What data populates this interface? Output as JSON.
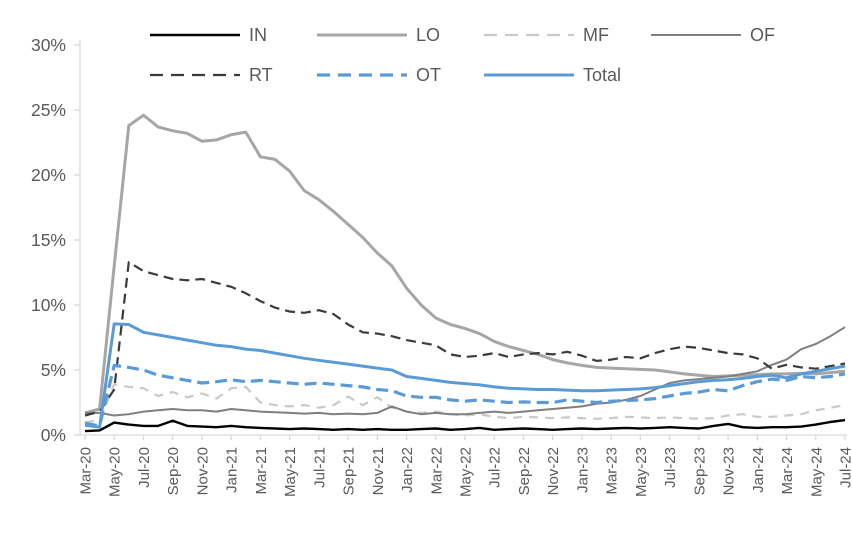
{
  "chart_data": {
    "type": "line",
    "title": "",
    "xlabel": "",
    "ylabel": "",
    "ylim": [
      0,
      30
    ],
    "grid": false,
    "legend_position": "top",
    "text_color": "#595959",
    "axis_color": "#d9d9d9",
    "y_ticks": [
      {
        "value": 0,
        "label": "0%"
      },
      {
        "value": 5,
        "label": "5%"
      },
      {
        "value": 10,
        "label": "10%"
      },
      {
        "value": 15,
        "label": "15%"
      },
      {
        "value": 20,
        "label": "20%"
      },
      {
        "value": 25,
        "label": "25%"
      },
      {
        "value": 30,
        "label": "30%"
      }
    ],
    "x_tick_labels": [
      "Mar-20",
      "May-20",
      "Jul-20",
      "Sep-20",
      "Nov-20",
      "Jan-21",
      "Mar-21",
      "May-21",
      "Jul-21",
      "Sep-21",
      "Nov-21",
      "Jan-22",
      "Mar-22",
      "May-22",
      "Jul-22",
      "Sep-22",
      "Nov-22",
      "Jan-23",
      "Mar-23",
      "May-23",
      "Jul-23",
      "Sep-23",
      "Nov-23",
      "Jan-24",
      "Mar-24",
      "May-24",
      "Jul-24"
    ],
    "x_categories": [
      "Mar-20",
      "Apr-20",
      "May-20",
      "Jun-20",
      "Jul-20",
      "Aug-20",
      "Sep-20",
      "Oct-20",
      "Nov-20",
      "Dec-20",
      "Jan-21",
      "Feb-21",
      "Mar-21",
      "Apr-21",
      "May-21",
      "Jun-21",
      "Jul-21",
      "Aug-21",
      "Sep-21",
      "Oct-21",
      "Nov-21",
      "Dec-21",
      "Jan-22",
      "Feb-22",
      "Mar-22",
      "Apr-22",
      "May-22",
      "Jun-22",
      "Jul-22",
      "Aug-22",
      "Sep-22",
      "Oct-22",
      "Nov-22",
      "Dec-22",
      "Jan-23",
      "Feb-23",
      "Mar-23",
      "Apr-23",
      "May-23",
      "Jun-23",
      "Jul-23",
      "Aug-23",
      "Sep-23",
      "Oct-23",
      "Nov-23",
      "Dec-23",
      "Jan-24",
      "Feb-24",
      "Mar-24",
      "Apr-24",
      "May-24",
      "Jun-24",
      "Jul-24"
    ],
    "series": [
      {
        "id": "IN",
        "label": "IN",
        "color": "#000000",
        "width": 2.4,
        "dash": null,
        "values": [
          0.3,
          0.35,
          0.95,
          0.8,
          0.7,
          0.7,
          1.1,
          0.7,
          0.65,
          0.6,
          0.7,
          0.6,
          0.55,
          0.5,
          0.45,
          0.5,
          0.45,
          0.4,
          0.45,
          0.4,
          0.45,
          0.4,
          0.4,
          0.45,
          0.5,
          0.4,
          0.45,
          0.55,
          0.4,
          0.45,
          0.5,
          0.45,
          0.4,
          0.45,
          0.5,
          0.45,
          0.5,
          0.55,
          0.5,
          0.55,
          0.6,
          0.55,
          0.5,
          0.7,
          0.85,
          0.6,
          0.55,
          0.6,
          0.6,
          0.65,
          0.8,
          1.0,
          1.15
        ]
      },
      {
        "id": "LO",
        "label": "LO",
        "color": "#a6a6a6",
        "width": 3,
        "dash": null,
        "values": [
          1.7,
          2.0,
          13.0,
          23.8,
          24.6,
          23.7,
          23.4,
          23.2,
          22.6,
          22.7,
          23.1,
          23.3,
          21.4,
          21.2,
          20.3,
          18.8,
          18.1,
          17.2,
          16.2,
          15.2,
          14.0,
          13.0,
          11.3,
          10.0,
          9.0,
          8.5,
          8.2,
          7.8,
          7.2,
          6.8,
          6.5,
          6.2,
          5.8,
          5.55,
          5.35,
          5.2,
          5.15,
          5.1,
          5.05,
          5.0,
          4.85,
          4.7,
          4.6,
          4.5,
          4.55,
          4.6,
          4.65,
          4.7,
          4.7,
          4.75,
          4.7,
          4.8,
          4.9
        ]
      },
      {
        "id": "MF",
        "label": "MF",
        "color": "#c9c9c9",
        "width": 2.2,
        "dash": "9 7",
        "values": [
          1.0,
          1.1,
          3.9,
          3.7,
          3.6,
          3.0,
          3.3,
          2.9,
          3.2,
          2.8,
          3.6,
          3.7,
          2.5,
          2.3,
          2.2,
          2.3,
          2.1,
          2.3,
          2.95,
          2.3,
          2.9,
          2.1,
          1.8,
          1.7,
          1.8,
          1.6,
          1.5,
          1.6,
          1.4,
          1.3,
          1.4,
          1.35,
          1.3,
          1.35,
          1.3,
          1.25,
          1.3,
          1.4,
          1.35,
          1.3,
          1.35,
          1.3,
          1.25,
          1.3,
          1.5,
          1.6,
          1.4,
          1.4,
          1.5,
          1.6,
          1.9,
          2.1,
          2.3
        ]
      },
      {
        "id": "OF",
        "label": "OF",
        "color": "#7f7f7f",
        "width": 2,
        "dash": null,
        "values": [
          1.7,
          1.7,
          1.5,
          1.6,
          1.8,
          1.9,
          2.0,
          1.9,
          1.9,
          1.8,
          2.0,
          1.9,
          1.8,
          1.75,
          1.7,
          1.65,
          1.7,
          1.6,
          1.65,
          1.6,
          1.7,
          2.2,
          1.8,
          1.6,
          1.7,
          1.6,
          1.6,
          1.7,
          1.8,
          1.7,
          1.8,
          1.9,
          2.0,
          2.1,
          2.2,
          2.4,
          2.5,
          2.7,
          3.0,
          3.5,
          4.0,
          4.2,
          4.3,
          4.4,
          4.5,
          4.7,
          4.9,
          5.4,
          5.8,
          6.6,
          7.0,
          7.6,
          8.3
        ]
      },
      {
        "id": "RT",
        "label": "RT",
        "color": "#3b3b3b",
        "width": 2.2,
        "dash": "10 6",
        "values": [
          1.5,
          1.8,
          3.5,
          13.3,
          12.6,
          12.3,
          12.0,
          11.9,
          12.0,
          11.7,
          11.4,
          10.9,
          10.3,
          9.8,
          9.5,
          9.4,
          9.6,
          9.3,
          8.5,
          7.9,
          7.8,
          7.6,
          7.3,
          7.1,
          6.9,
          6.2,
          6.0,
          6.1,
          6.3,
          6.0,
          6.2,
          6.3,
          6.2,
          6.4,
          6.1,
          5.7,
          5.8,
          6.0,
          5.9,
          6.3,
          6.6,
          6.8,
          6.7,
          6.5,
          6.3,
          6.2,
          5.9,
          5.1,
          5.4,
          5.2,
          5.1,
          5.3,
          5.5
        ]
      },
      {
        "id": "OT",
        "label": "OT",
        "color": "#5b9bd5",
        "width": 3.2,
        "dash": "12 6",
        "values": [
          0.9,
          0.7,
          5.35,
          5.2,
          5.0,
          4.6,
          4.4,
          4.2,
          4.0,
          4.1,
          4.25,
          4.1,
          4.2,
          4.1,
          4.0,
          3.9,
          4.0,
          3.9,
          3.8,
          3.7,
          3.5,
          3.4,
          3.0,
          2.9,
          2.9,
          2.7,
          2.6,
          2.7,
          2.6,
          2.5,
          2.55,
          2.5,
          2.5,
          2.7,
          2.6,
          2.5,
          2.6,
          2.65,
          2.7,
          2.8,
          3.0,
          3.2,
          3.3,
          3.5,
          3.4,
          3.8,
          4.1,
          4.3,
          4.2,
          4.5,
          4.4,
          4.5,
          4.7
        ]
      },
      {
        "id": "Total",
        "label": "Total",
        "color": "#5b9bd5",
        "width": 3,
        "dash": null,
        "values": [
          0.75,
          0.6,
          8.55,
          8.5,
          7.9,
          7.7,
          7.5,
          7.3,
          7.1,
          6.9,
          6.8,
          6.6,
          6.5,
          6.3,
          6.1,
          5.9,
          5.75,
          5.6,
          5.45,
          5.3,
          5.15,
          5.0,
          4.5,
          4.35,
          4.2,
          4.05,
          3.95,
          3.85,
          3.7,
          3.6,
          3.55,
          3.5,
          3.5,
          3.45,
          3.4,
          3.4,
          3.45,
          3.5,
          3.55,
          3.65,
          3.8,
          3.95,
          4.1,
          4.2,
          4.25,
          4.35,
          4.5,
          4.6,
          4.4,
          4.7,
          4.9,
          5.1,
          5.3
        ]
      }
    ]
  }
}
